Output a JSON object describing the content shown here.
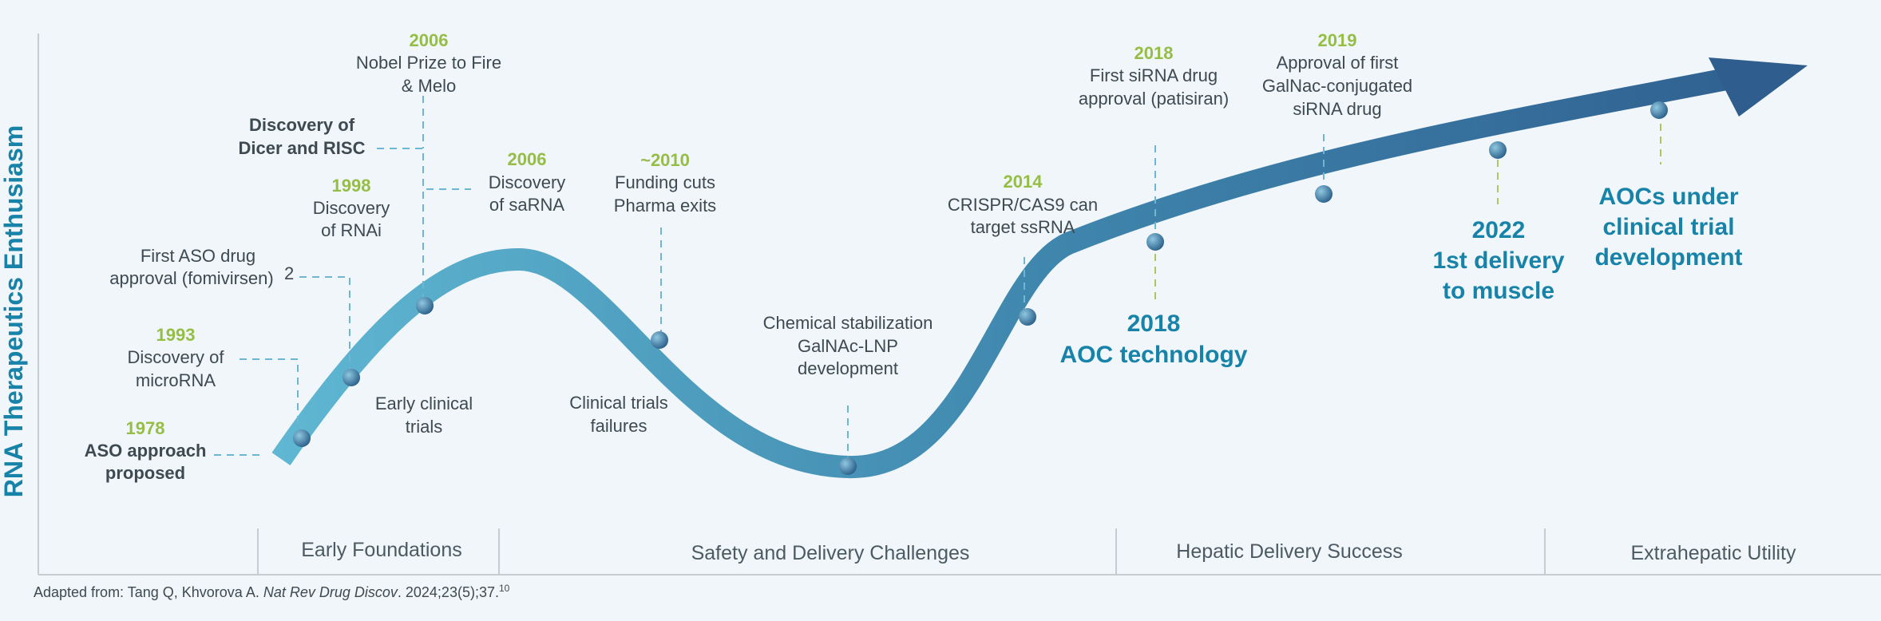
{
  "y_axis_title": "RNA Therapeutics Enthusiasm",
  "citation": {
    "prefix": "Adapted from: Tang Q, Khvorova A. ",
    "journal": "Nat Rev Drug Discov",
    "suffix": ". 2024;23(5);37.",
    "superscript": "10"
  },
  "phases": [
    {
      "label": "Early Foundations"
    },
    {
      "label": "Safety and Delivery Challenges"
    },
    {
      "label": "Hepatic Delivery Success"
    },
    {
      "label": "Extrahepatic Utility"
    }
  ],
  "milestones": {
    "m1978": {
      "year": "1978",
      "line1": "ASO approach",
      "line2": "proposed"
    },
    "m1993": {
      "year": "1993",
      "line1": "Discovery of",
      "line2": "microRNA"
    },
    "fomivirsen": {
      "line1": "First ASO drug",
      "line2": "approval (fomivirsen)",
      "sup": "2"
    },
    "m1998": {
      "year": "1998",
      "line1": "Discovery",
      "line2": "of RNAi"
    },
    "dicer": {
      "line1": "Discovery of",
      "line2": "Dicer and RISC"
    },
    "m2006nobel": {
      "year": "2006",
      "line1": "Nobel Prize to Fire",
      "line2": "& Melo"
    },
    "m2006sarna": {
      "year": "2006",
      "line1": "Discovery",
      "line2": "of saRNA"
    },
    "m2010": {
      "year": "~2010",
      "line1": "Funding cuts",
      "line2": "Pharma exits"
    },
    "early_trials": {
      "line1": "Early clinical",
      "line2": "trials"
    },
    "trial_failures": {
      "line1": "Clinical trials",
      "line2": "failures"
    },
    "chem": {
      "line1": "Chemical stabilization",
      "line2": "GalNAc-LNP",
      "line3": "development"
    },
    "m2014": {
      "year": "2014",
      "line1": "CRISPR/CAS9 can",
      "line2": "target ssRNA"
    },
    "m2018sirna": {
      "year": "2018",
      "line1": "First siRNA drug",
      "line2": "approval (patisiran)"
    },
    "m2019": {
      "year": "2019",
      "line1": "Approval of first",
      "line2": "GalNac-conjugated",
      "line3": "siRNA drug"
    },
    "aoc2018": {
      "line1": "2018",
      "line2": "AOC technology"
    },
    "muscle2022": {
      "line1": "2022",
      "line2": "1st delivery",
      "line3": "to muscle"
    },
    "aocs_trial": {
      "line1": "AOCs under",
      "line2": "clinical trial",
      "line3": "development"
    }
  },
  "colors": {
    "curve_start": "#5fb7d2",
    "curve_end": "#2f5e8e",
    "year": "#96bd46",
    "accent": "#1883a8",
    "leader": "#6fb6d2"
  }
}
